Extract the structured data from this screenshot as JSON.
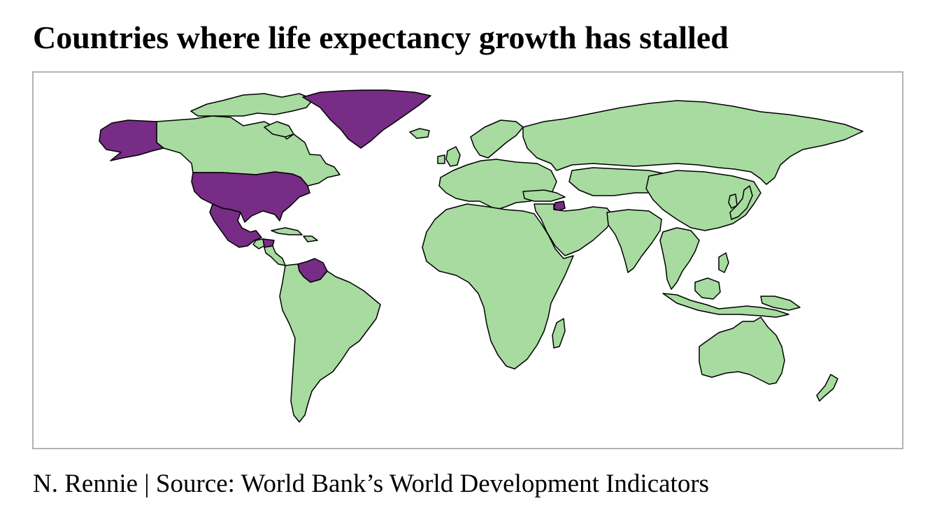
{
  "title": "Countries where life expectancy growth has stalled",
  "caption": "N. Rennie | Source: World Bank’s World Development Indicators",
  "map": {
    "fill_colors": {
      "stalled": "#772c85",
      "other": "#a7dba0",
      "ocean": "#ffffff",
      "border": "#000000"
    },
    "stalled_countries": [
      "Alaska (United States)",
      "United States",
      "Greenland",
      "Mexico",
      "Honduras",
      "Venezuela",
      "Syria"
    ]
  }
}
